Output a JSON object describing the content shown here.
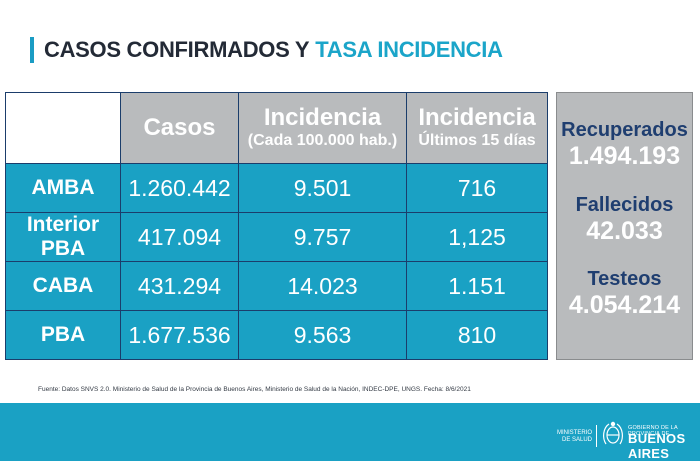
{
  "title": {
    "part1": "CASOS CONFIRMADOS Y",
    "part2": "TASA INCIDENCIA"
  },
  "table": {
    "headers": [
      {
        "main": "Casos",
        "sub": ""
      },
      {
        "main": "Incidencia",
        "sub": "(Cada 100.000 hab.)"
      },
      {
        "main": "Incidencia",
        "sub": "Últimos 15 días"
      }
    ],
    "rows": [
      {
        "label": "AMBA",
        "casos": "1.260.442",
        "incidencia": "9.501",
        "ultimos": "716"
      },
      {
        "label": "Interior PBA",
        "casos": "417.094",
        "incidencia": "9.757",
        "ultimos": "1,125"
      },
      {
        "label": "CABA",
        "casos": "431.294",
        "incidencia": "14.023",
        "ultimos": "1.151"
      },
      {
        "label": "PBA",
        "casos": "1.677.536",
        "incidencia": "9.563",
        "ultimos": "810"
      }
    ]
  },
  "summary": {
    "recuperados_label": "Recuperados",
    "recuperados_value": "1.494.193",
    "fallecidos_label": "Fallecidos",
    "fallecidos_value": "42.033",
    "testeos_label": "Testeos",
    "testeos_value": "4.054.214"
  },
  "source": "Fuente: Datos SNVS 2.0. Ministerio de Salud de la Provincia de Buenos Aires, Ministerio de Salud de la Nación, INDEC-DPE, UNGS. Fecha: 8/6/2021",
  "footer": {
    "ministerio": "MINISTERIO DE SALUD",
    "gov_small": "GOBIERNO DE LA PROVINCIA DE",
    "gov_big": "BUENOS AIRES"
  },
  "colors": {
    "accent": "#1aa1c4",
    "header_gray": "#b9bbbd",
    "navy": "#1f3e70"
  }
}
